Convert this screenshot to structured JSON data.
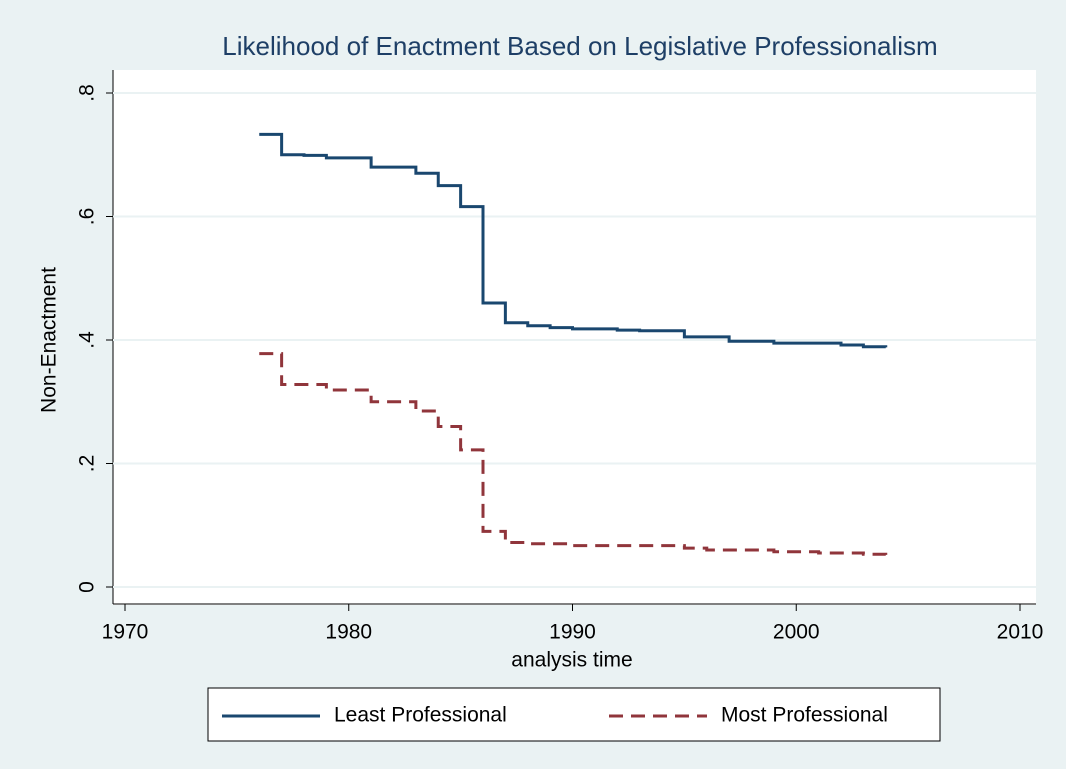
{
  "chart_data": {
    "type": "line",
    "drawstyle": "steps-post",
    "title": "Likelihood of Enactment Based on Legislative Professionalism",
    "xlabel": "analysis time",
    "ylabel": "Non-Enactment",
    "xlim": [
      1970,
      2010
    ],
    "xticks": [
      1970,
      1980,
      1990,
      2000,
      2010
    ],
    "ylim": [
      0,
      0.8
    ],
    "yticks": [
      0,
      {
        "value": 0.2,
        "label": ".2"
      },
      {
        "value": 0.4,
        "label": ".4"
      },
      {
        "value": 0.6,
        "label": ".6"
      },
      {
        "value": 0.8,
        "label": ".8"
      }
    ],
    "grid": true,
    "legend": "bottom",
    "series": [
      {
        "name": "Least Professional",
        "color": "#1a476f",
        "dash": "solid",
        "x": [
          1976,
          1977,
          1978,
          1979,
          1981,
          1983,
          1984,
          1985,
          1986,
          1987,
          1988,
          1989,
          1990,
          1992,
          1993,
          1995,
          1997,
          1999,
          2002,
          2003,
          2004
        ],
        "values": [
          0.733,
          0.7,
          0.699,
          0.695,
          0.68,
          0.67,
          0.65,
          0.616,
          0.46,
          0.428,
          0.423,
          0.42,
          0.418,
          0.416,
          0.415,
          0.405,
          0.398,
          0.395,
          0.392,
          0.389,
          0.388
        ]
      },
      {
        "name": "Most Professional",
        "color": "#90353b",
        "dash": "dashed",
        "x": [
          1976,
          1977,
          1979,
          1981,
          1983,
          1984,
          1985,
          1986,
          1987,
          1988,
          1990,
          1995,
          1996,
          1999,
          2001,
          2003,
          2004
        ],
        "values": [
          0.378,
          0.328,
          0.319,
          0.3,
          0.285,
          0.26,
          0.222,
          0.09,
          0.072,
          0.07,
          0.067,
          0.063,
          0.06,
          0.057,
          0.055,
          0.053,
          0.052
        ]
      }
    ]
  }
}
